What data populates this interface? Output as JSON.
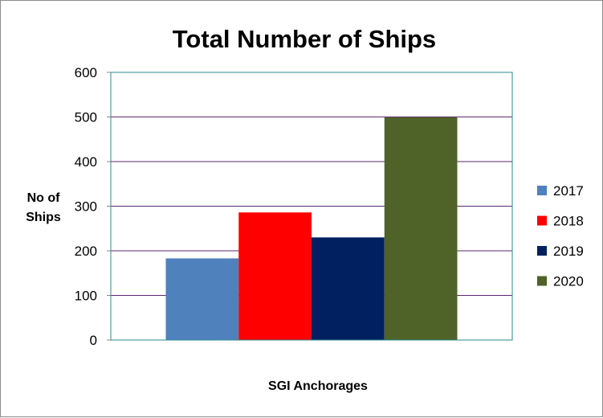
{
  "chart_data": {
    "type": "bar",
    "title": "Total Number of Ships",
    "xlabel": "SGI Anchorages",
    "ylabel_lines": [
      "No of",
      "Ships"
    ],
    "categories": [
      "SGI Anchorages"
    ],
    "series": [
      {
        "name": "2017",
        "values": [
          183
        ],
        "color": "#4f81bd"
      },
      {
        "name": "2018",
        "values": [
          286
        ],
        "color": "#ff0000"
      },
      {
        "name": "2019",
        "values": [
          230
        ],
        "color": "#002060"
      },
      {
        "name": "2020",
        "values": [
          499
        ],
        "color": "#4f6228"
      }
    ],
    "ylim": [
      0,
      600
    ],
    "yticks": [
      0,
      100,
      200,
      300,
      400,
      500,
      600
    ],
    "grid": true,
    "gridline_color": "#5b2a6e",
    "plot_border_color": "#2e8b8b",
    "legend_position": "right"
  }
}
